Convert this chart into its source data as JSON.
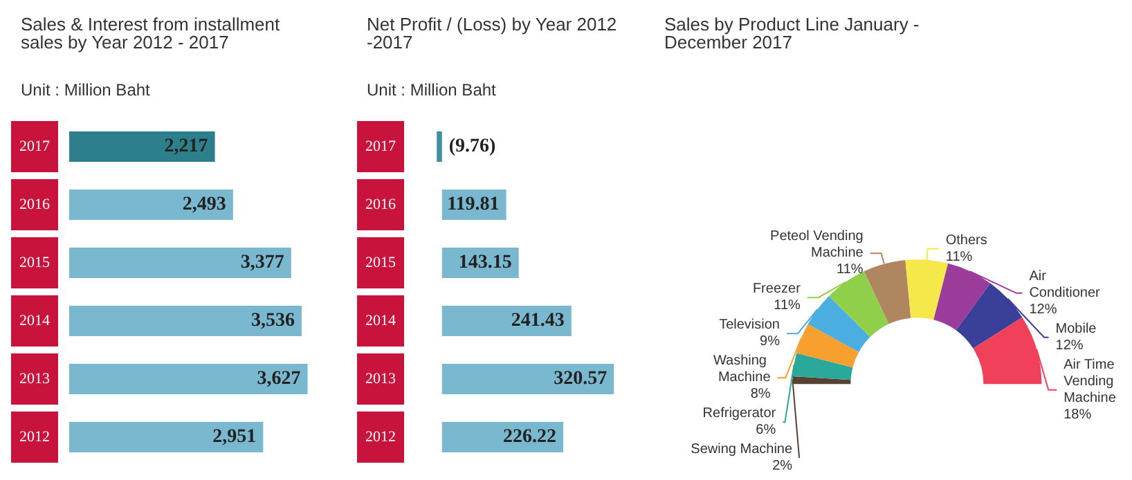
{
  "chart_data": [
    {
      "type": "bar",
      "title": "Sales & Interest from installment sales by Year 2012 - 2017",
      "subtitle": "Unit : Million Baht",
      "orientation": "horizontal",
      "tick_labels": "y",
      "categories": [
        "2017",
        "2016",
        "2015",
        "2014",
        "2013",
        "2012"
      ],
      "values": [
        2217,
        2493,
        3377,
        3536,
        3627,
        2951
      ],
      "value_labels": [
        "2,217",
        "2,493",
        "3,377",
        "3,536",
        "3,627",
        "2,951"
      ],
      "colors": [
        "#2e7f8c",
        "#7ab8d0",
        "#7ab8d0",
        "#7ab8d0",
        "#7ab8d0",
        "#7ab8d0"
      ]
    },
    {
      "type": "bar",
      "title": "Net Profit / (Loss) by Year 2012 -2017",
      "subtitle": "Unit : Million Baht",
      "orientation": "horizontal",
      "tick_labels": "y",
      "categories": [
        "2017",
        "2016",
        "2015",
        "2014",
        "2013",
        "2012"
      ],
      "values": [
        -9.76,
        119.81,
        143.15,
        241.43,
        320.57,
        226.22
      ],
      "value_labels": [
        "(9.76)",
        "119.81",
        "143.15",
        "241.43",
        "320.57",
        "226.22"
      ],
      "colors": [
        "#3f8fa0",
        "#7ab8d0",
        "#7ab8d0",
        "#7ab8d0",
        "#7ab8d0",
        "#7ab8d0"
      ]
    },
    {
      "type": "donut",
      "title": "Sales by Product Line January - December 2017",
      "value_labels": [
        "2%",
        "6%",
        "8%",
        "9%",
        "11%",
        "11%",
        "11%",
        "12%",
        "12%",
        "18%"
      ],
      "categories": [
        "Sewing Machine",
        "Refrigerator",
        "Washing Machine",
        "Television",
        "Freezer",
        "Peteol Vending Machine",
        "Others",
        "Air Conditioner",
        "Mobile",
        "Air Time Vending Machine"
      ],
      "values": [
        2,
        6,
        8,
        9,
        11,
        11,
        11,
        12,
        12,
        18
      ],
      "colors": [
        "#5a4030",
        "#2aa89a",
        "#f7a030",
        "#4aaee0",
        "#8fcf4a",
        "#b08660",
        "#f5e84a",
        "#9b3c9a",
        "#3a3f9a",
        "#f0405a"
      ]
    }
  ]
}
